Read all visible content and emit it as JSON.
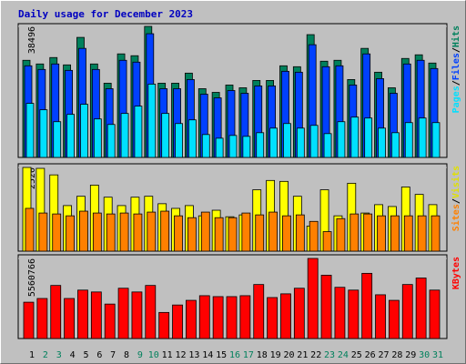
{
  "chart_data": {
    "type": "bar",
    "title": "Daily usage for December 2023",
    "legend_separator": "/",
    "categories": [
      "1",
      "2",
      "3",
      "4",
      "5",
      "6",
      "7",
      "8",
      "9",
      "10",
      "11",
      "12",
      "13",
      "14",
      "15",
      "16",
      "17",
      "18",
      "19",
      "20",
      "21",
      "22",
      "23",
      "24",
      "25",
      "26",
      "27",
      "28",
      "29",
      "30",
      "31"
    ],
    "panels": [
      {
        "ylim": [
          0,
          38496
        ],
        "yticks": [
          38496
        ],
        "series": [
          {
            "name": "Hits",
            "color": "#00805c",
            "values": [
              28535,
              27458,
              29343,
              27189,
              35265,
              27458,
              21805,
              30420,
              29881,
              38496,
              21805,
              21805,
              24766,
              20190,
              19113,
              21267,
              20459,
              22613,
              22613,
              26920,
              26651,
              36073,
              28266,
              28535,
              22882,
              32035,
              25036,
              20459,
              29074,
              30150,
              27728
            ]
          },
          {
            "name": "Files",
            "color": "#0040ff",
            "values": [
              26920,
              25843,
              27458,
              25574,
              32035,
              25843,
              20190,
              28535,
              27997,
              36342,
              20190,
              20190,
              22882,
              18575,
              17498,
              19652,
              18844,
              20998,
              20998,
              25305,
              25036,
              33112,
              26651,
              26920,
              21267,
              30420,
              23151,
              18844,
              27458,
              28535,
              26112
            ]
          },
          {
            "name": "Pages",
            "color": "#00e0ff",
            "values": [
              15883,
              13998,
              10499,
              12652,
              15614,
              11306,
              9691,
              12922,
              15075,
              21536,
              12922,
              9960,
              11037,
              6730,
              5653,
              6461,
              6192,
              7268,
              8614,
              9960,
              8614,
              9422,
              6999,
              10499,
              11845,
              11576,
              8614,
              7268,
              10229,
              11576,
              10229
            ]
          }
        ]
      },
      {
        "ylim": [
          0,
          2520
        ],
        "yticks": [
          2520
        ],
        "series": [
          {
            "name": "Visits",
            "color": "#ffff00",
            "values": [
              2520,
              2492,
              2296,
              1372,
              1652,
              1988,
              1624,
              1372,
              1624,
              1652,
              1428,
              1288,
              1372,
              1064,
              1232,
              1036,
              1092,
              1848,
              2128,
              2100,
              1652,
              756,
              1848,
              1064,
              2044,
              1148,
              1400,
              1344,
              1932,
              1708,
              1400
            ]
          },
          {
            "name": "Sites",
            "color": "#ff8000",
            "values": [
              1288,
              1148,
              1120,
              1064,
              1204,
              1148,
              1120,
              1148,
              1120,
              1176,
              1204,
              1064,
              1008,
              1176,
              1008,
              1008,
              1148,
              1092,
              1176,
              1064,
              1092,
              896,
              588,
              980,
              1120,
              1120,
              1064,
              1064,
              1064,
              1064,
              1064
            ]
          }
        ]
      },
      {
        "ylim": [
          0,
          5560766
        ],
        "yticks": [
          5560766
        ],
        "series": [
          {
            "name": "KBytes",
            "color": "#ff0000",
            "values": [
              2521740,
              2780380,
              3685620,
              2780380,
              3362320,
              3233000,
              2392420,
              3491640,
              3233000,
              3685620,
              1810480,
              2327760,
              2651060,
              2974360,
              2909700,
              2909700,
              2974360,
              3750280,
              2845040,
              3103680,
              3491640,
              5560766,
              4396880,
              3556300,
              3362320,
              4526200,
              3038020,
              2651060,
              3750280,
              4202900,
              3362320
            ]
          }
        ]
      }
    ]
  }
}
